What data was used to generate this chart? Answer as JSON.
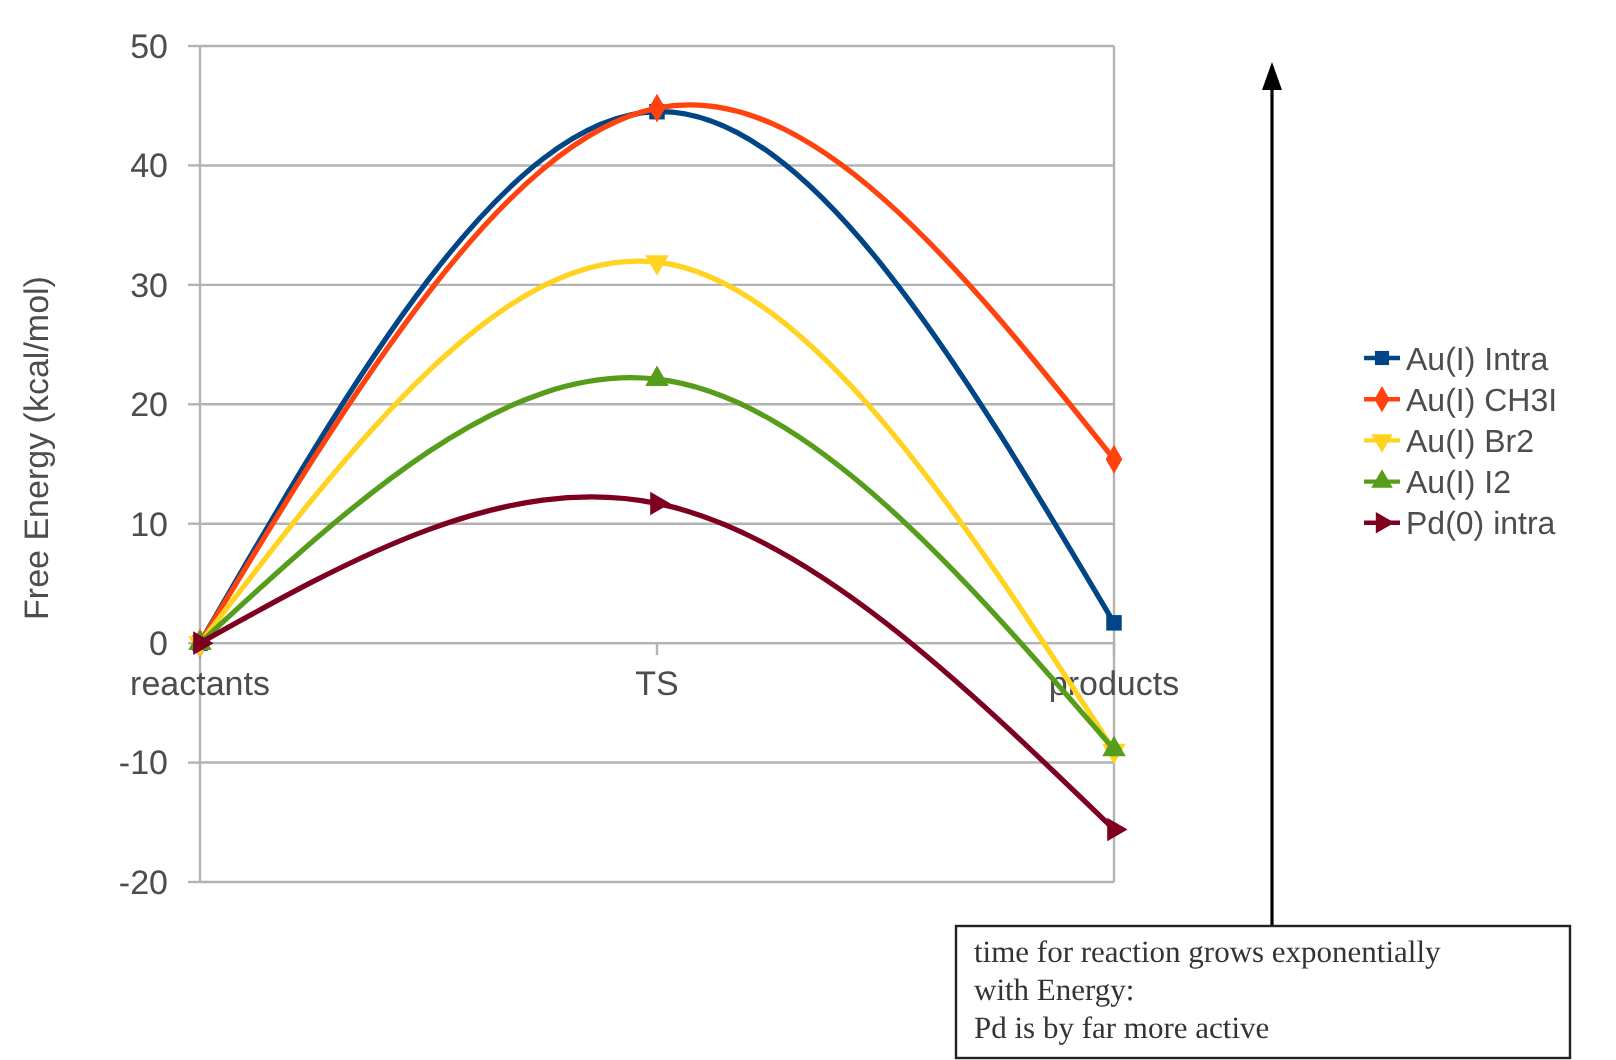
{
  "chart_data": {
    "type": "line",
    "ylabel": "Free Energy (kcal/mol)",
    "categories": [
      "reactants",
      "TS",
      "products"
    ],
    "series": [
      {
        "name": "Au(I) Intra",
        "color": "#004586",
        "marker": "square",
        "values": [
          0,
          44.5,
          1.7
        ]
      },
      {
        "name": "Au(I) CH3I",
        "color": "#ff420e",
        "marker": "diamond",
        "values": [
          0,
          44.8,
          15.4
        ]
      },
      {
        "name": "Au(I) Br2",
        "color": "#ffd320",
        "marker": "triangle-down",
        "values": [
          0,
          31.9,
          -9
        ]
      },
      {
        "name": "Au(I) I2",
        "color": "#579d1c",
        "marker": "triangle",
        "values": [
          0,
          22.1,
          -8.9
        ]
      },
      {
        "name": "Pd(0) intra",
        "color": "#7e0021",
        "marker": "triangle-right",
        "values": [
          0,
          11.7,
          -15.6
        ]
      }
    ],
    "ylim": [
      -20,
      50
    ],
    "yticks": [
      -20,
      -10,
      0,
      10,
      20,
      30,
      40,
      50
    ],
    "grid": "y",
    "legend": "right",
    "annotations": [
      "time for reaction grows exponentially\nwith Energy:\nPd is by far more active"
    ]
  }
}
